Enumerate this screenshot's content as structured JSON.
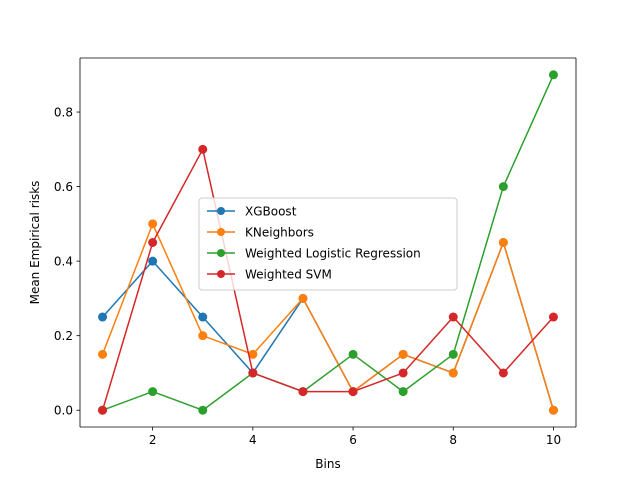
{
  "chart_data": {
    "type": "line",
    "title": "",
    "xlabel": "Bins",
    "ylabel": "Mean Empirical risks",
    "xlim": [
      0.55,
      10.45
    ],
    "ylim": [
      -0.045,
      0.945
    ],
    "xticks": [
      2,
      4,
      6,
      8,
      10
    ],
    "yticks": [
      0.0,
      0.2,
      0.4,
      0.6,
      0.8
    ],
    "ytick_labels": [
      "0.0",
      "0.2",
      "0.4",
      "0.6",
      "0.8"
    ],
    "grid": false,
    "legend_position": "center",
    "x": [
      1,
      2,
      3,
      4,
      5,
      6,
      7,
      8,
      9,
      10
    ],
    "series": [
      {
        "name": "XGBoost",
        "color": "#1f77b4",
        "values": [
          0.25,
          0.4,
          0.25,
          0.1,
          0.3,
          0.05,
          0.15,
          0.1,
          0.45,
          0.0
        ]
      },
      {
        "name": "KNeighbors",
        "color": "#ff7f0e",
        "values": [
          0.15,
          0.5,
          0.2,
          0.15,
          0.3,
          0.05,
          0.15,
          0.1,
          0.45,
          0.0
        ]
      },
      {
        "name": "Weighted Logistic Regression",
        "color": "#2ca02c",
        "values": [
          0.0,
          0.05,
          0.0,
          0.1,
          0.05,
          0.15,
          0.05,
          0.15,
          0.6,
          0.9
        ]
      },
      {
        "name": "Weighted SVM",
        "color": "#d62728",
        "values": [
          0.0,
          0.45,
          0.7,
          0.1,
          0.05,
          0.05,
          0.1,
          0.25,
          0.1,
          0.25
        ]
      }
    ]
  }
}
